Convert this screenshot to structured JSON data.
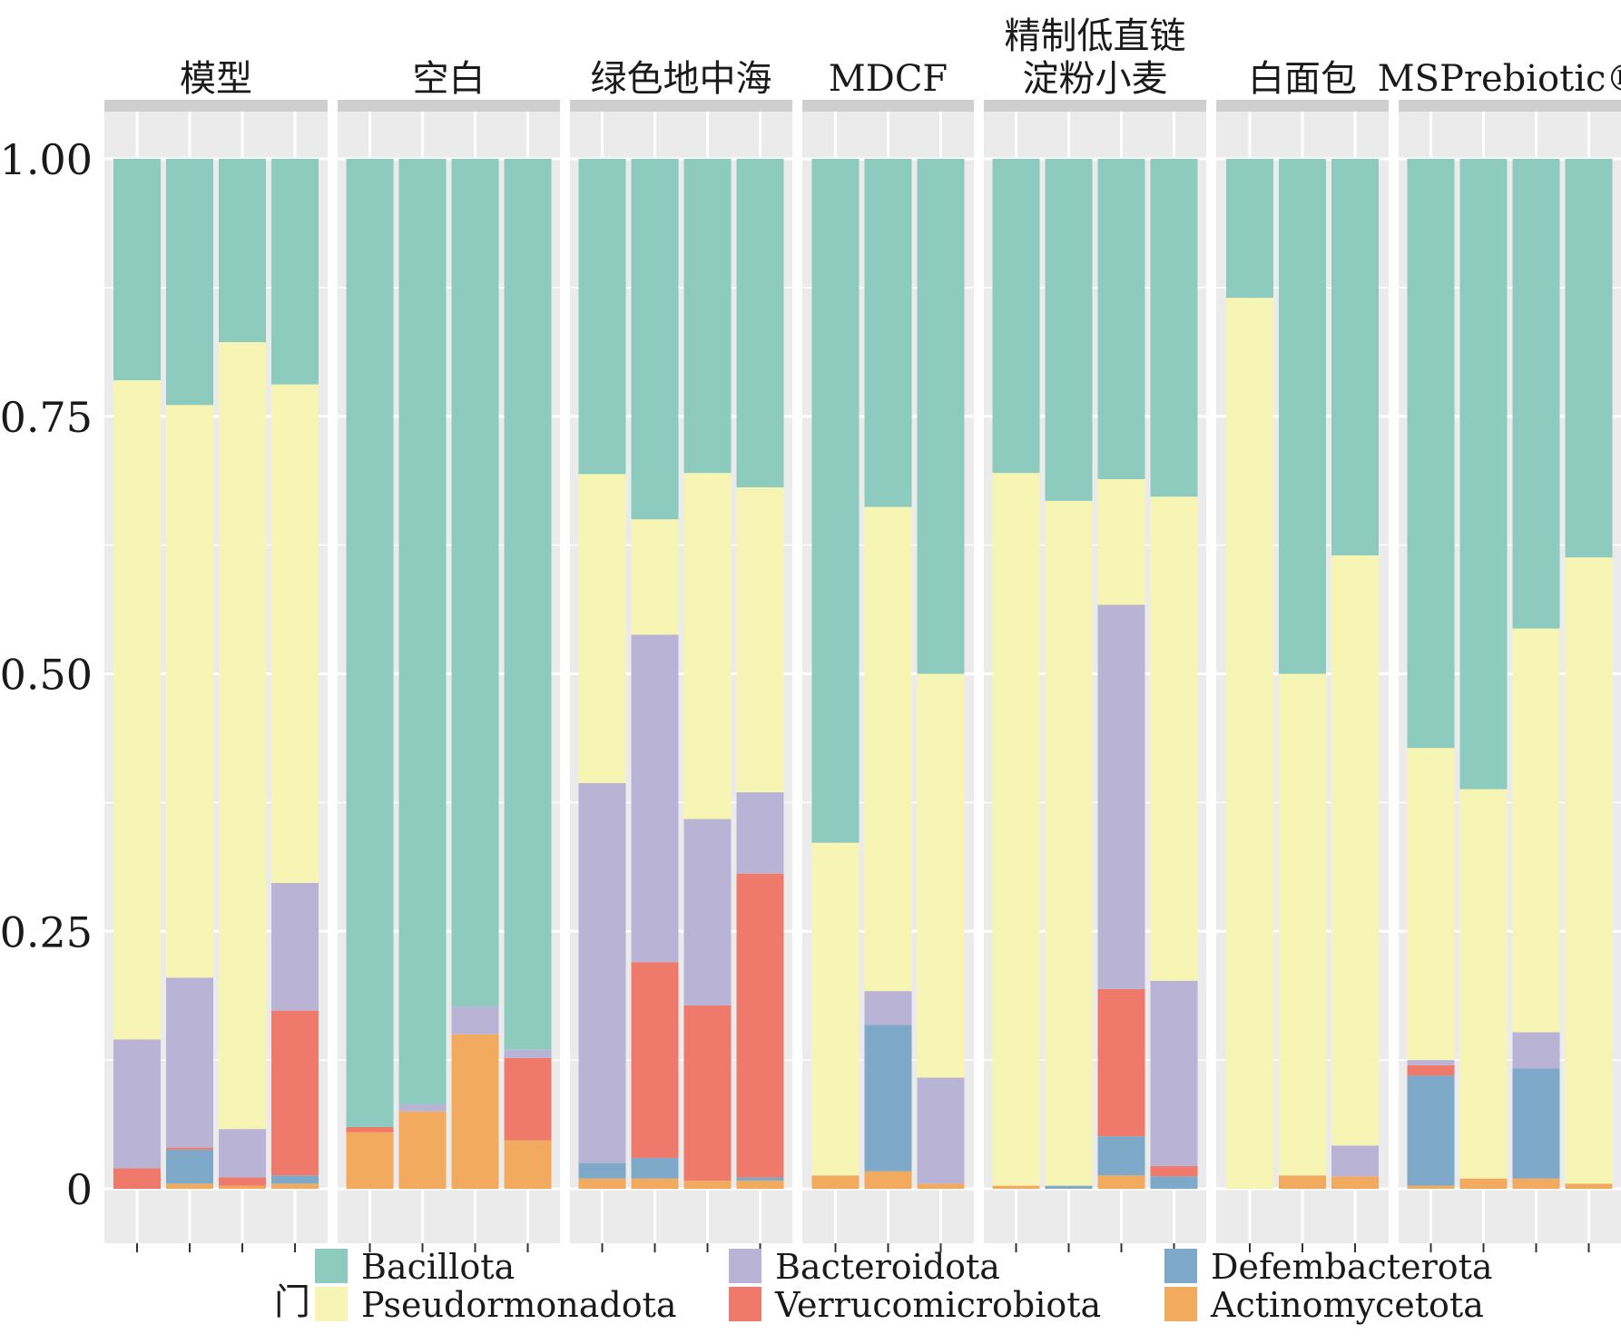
{
  "chart_data": {
    "type": "bar",
    "stacked": true,
    "faceted": true,
    "ylim": [
      0,
      1.05
    ],
    "yticks": [
      {
        "value": 0,
        "label": "0"
      },
      {
        "value": 0.25,
        "label": "0.25"
      },
      {
        "value": 0.5,
        "label": "0.50"
      },
      {
        "value": 0.75,
        "label": "0.75"
      },
      {
        "value": 1.0,
        "label": "1.00"
      }
    ],
    "legend": {
      "title": "门",
      "position": "bottom",
      "columns": [
        [
          "Bacillota",
          "Pseudormonadota"
        ],
        [
          "Bacteroidota",
          "Verrucomicrobiota"
        ],
        [
          "Defembacterota",
          "Actinomycetota"
        ]
      ]
    },
    "series": [
      {
        "name": "Actinomycetota",
        "color": "#f2ab5e"
      },
      {
        "name": "Defembacterota",
        "color": "#7ea9c9"
      },
      {
        "name": "Verrucomicrobiota",
        "color": "#ef7a6c"
      },
      {
        "name": "Bacteroidota",
        "color": "#b9b4d5"
      },
      {
        "name": "Pseudormonadota",
        "color": "#f7f5b4"
      },
      {
        "name": "Bacillota",
        "color": "#8dcbbe"
      }
    ],
    "panels": [
      {
        "title": [
          "模型"
        ],
        "samples": [
          [
            0.0,
            0.0,
            0.02,
            0.125,
            0.64,
            0.215
          ],
          [
            0.005,
            0.033,
            0.002,
            0.165,
            0.556,
            0.239
          ],
          [
            0.003,
            0.0,
            0.008,
            0.047,
            0.764,
            0.178
          ],
          [
            0.005,
            0.008,
            0.16,
            0.124,
            0.484,
            0.219
          ]
        ]
      },
      {
        "title": [
          "空白"
        ],
        "samples": [
          [
            0.055,
            0.0,
            0.005,
            0.0,
            0.0,
            0.94
          ],
          [
            0.075,
            0.0,
            0.0,
            0.007,
            0.0,
            0.918
          ],
          [
            0.15,
            0.0,
            0.0,
            0.027,
            0.0,
            0.823
          ],
          [
            0.047,
            0.0,
            0.08,
            0.008,
            0.0,
            0.865
          ]
        ]
      },
      {
        "title": [
          "绿色地中海"
        ],
        "samples": [
          [
            0.01,
            0.015,
            0.0,
            0.369,
            0.3,
            0.306
          ],
          [
            0.01,
            0.02,
            0.19,
            0.318,
            0.112,
            0.35
          ],
          [
            0.008,
            0.0,
            0.17,
            0.181,
            0.336,
            0.305
          ],
          [
            0.008,
            0.003,
            0.295,
            0.079,
            0.296,
            0.319
          ]
        ]
      },
      {
        "title": [
          "MDCF"
        ],
        "samples": [
          [
            0.013,
            0.0,
            0.0,
            0.0,
            0.323,
            0.664
          ],
          [
            0.017,
            0.142,
            0.0,
            0.033,
            0.47,
            0.338
          ],
          [
            0.005,
            0.0,
            0.0,
            0.103,
            0.392,
            0.5
          ]
        ]
      },
      {
        "title": [
          "精制低直链",
          "淀粉小麦"
        ],
        "samples": [
          [
            0.003,
            0.0,
            0.0,
            0.0,
            0.692,
            0.305
          ],
          [
            0.0,
            0.003,
            0.0,
            0.0,
            0.665,
            0.332
          ],
          [
            0.013,
            0.038,
            0.143,
            0.373,
            0.122,
            0.311
          ],
          [
            0.0,
            0.012,
            0.01,
            0.18,
            0.47,
            0.328
          ]
        ]
      },
      {
        "title": [
          "白面包"
        ],
        "samples": [
          [
            0.0,
            0.0,
            0.0,
            0.0,
            0.865,
            0.135
          ],
          [
            0.013,
            0.0,
            0.0,
            0.0,
            0.487,
            0.5
          ],
          [
            0.012,
            0.0,
            0.0,
            0.03,
            0.573,
            0.385
          ]
        ]
      },
      {
        "title": [
          "MSPrebiotic®"
        ],
        "samples": [
          [
            0.003,
            0.107,
            0.01,
            0.005,
            0.303,
            0.572
          ],
          [
            0.01,
            0.0,
            0.0,
            0.0,
            0.378,
            0.612
          ],
          [
            0.01,
            0.107,
            0.0,
            0.035,
            0.392,
            0.456
          ],
          [
            0.005,
            0.0,
            0.0,
            0.0,
            0.608,
            0.387
          ]
        ]
      }
    ]
  }
}
